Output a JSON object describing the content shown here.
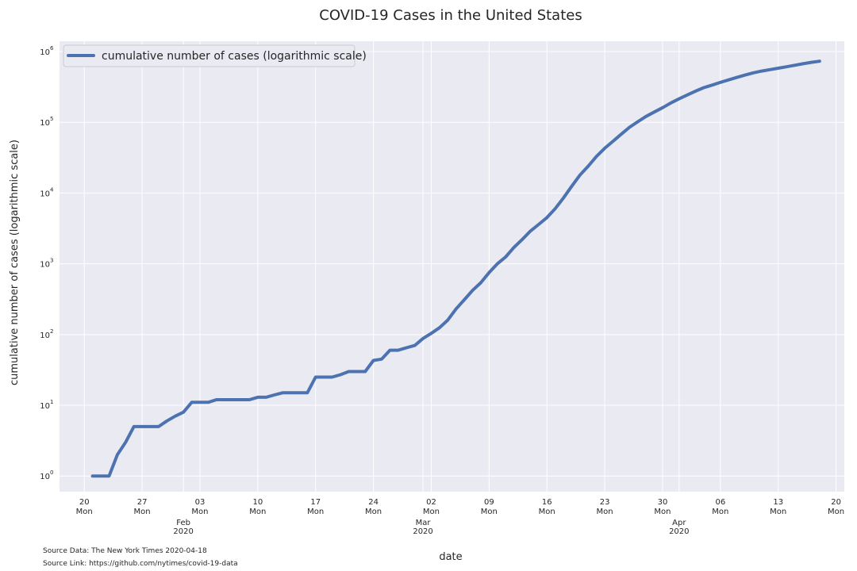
{
  "chart_data": {
    "type": "line",
    "title": "COVID-19 Cases in the United States",
    "xlabel": "date",
    "ylabel": "cumulative number of cases (logarithmic scale)",
    "yscale": "log",
    "ylim": [
      0.6,
      1400000
    ],
    "xlim": [
      "2020-01-17",
      "2020-04-21"
    ],
    "grid": true,
    "legend_position": "top-left",
    "line_color": "#4c72b0",
    "x_ticks": [
      {
        "date": "2020-01-20",
        "day": "20",
        "weekday": "Mon"
      },
      {
        "date": "2020-01-27",
        "day": "27",
        "weekday": "Mon"
      },
      {
        "date": "2020-02-03",
        "day": "03",
        "weekday": "Mon"
      },
      {
        "date": "2020-02-10",
        "day": "10",
        "weekday": "Mon"
      },
      {
        "date": "2020-02-17",
        "day": "17",
        "weekday": "Mon"
      },
      {
        "date": "2020-02-24",
        "day": "24",
        "weekday": "Mon"
      },
      {
        "date": "2020-03-02",
        "day": "02",
        "weekday": "Mon"
      },
      {
        "date": "2020-03-09",
        "day": "09",
        "weekday": "Mon"
      },
      {
        "date": "2020-03-16",
        "day": "16",
        "weekday": "Mon"
      },
      {
        "date": "2020-03-23",
        "day": "23",
        "weekday": "Mon"
      },
      {
        "date": "2020-03-30",
        "day": "30",
        "weekday": "Mon"
      },
      {
        "date": "2020-04-06",
        "day": "06",
        "weekday": "Mon"
      },
      {
        "date": "2020-04-13",
        "day": "13",
        "weekday": "Mon"
      },
      {
        "date": "2020-04-20",
        "day": "20",
        "weekday": "Mon"
      }
    ],
    "month_ticks": [
      {
        "date": "2020-02-01",
        "month": "Feb",
        "year": "2020"
      },
      {
        "date": "2020-03-01",
        "month": "Mar",
        "year": "2020"
      },
      {
        "date": "2020-04-01",
        "month": "Apr",
        "year": "2020"
      }
    ],
    "y_ticks": [
      {
        "value": 1,
        "base": "10",
        "exp": "0"
      },
      {
        "value": 10,
        "base": "10",
        "exp": "1"
      },
      {
        "value": 100,
        "base": "10",
        "exp": "2"
      },
      {
        "value": 1000,
        "base": "10",
        "exp": "3"
      },
      {
        "value": 10000,
        "base": "10",
        "exp": "4"
      },
      {
        "value": 100000,
        "base": "10",
        "exp": "5"
      },
      {
        "value": 1000000,
        "base": "10",
        "exp": "6"
      }
    ],
    "series": [
      {
        "name": "cumulative number of cases (logarithmic scale)",
        "points": [
          [
            "2020-01-21",
            1
          ],
          [
            "2020-01-22",
            1
          ],
          [
            "2020-01-23",
            1
          ],
          [
            "2020-01-24",
            2
          ],
          [
            "2020-01-25",
            3
          ],
          [
            "2020-01-26",
            5
          ],
          [
            "2020-01-27",
            5
          ],
          [
            "2020-01-28",
            5
          ],
          [
            "2020-01-29",
            5
          ],
          [
            "2020-01-30",
            6
          ],
          [
            "2020-01-31",
            7
          ],
          [
            "2020-02-01",
            8
          ],
          [
            "2020-02-02",
            11
          ],
          [
            "2020-02-03",
            11
          ],
          [
            "2020-02-04",
            11
          ],
          [
            "2020-02-05",
            12
          ],
          [
            "2020-02-06",
            12
          ],
          [
            "2020-02-07",
            12
          ],
          [
            "2020-02-08",
            12
          ],
          [
            "2020-02-09",
            12
          ],
          [
            "2020-02-10",
            13
          ],
          [
            "2020-02-11",
            13
          ],
          [
            "2020-02-12",
            14
          ],
          [
            "2020-02-13",
            15
          ],
          [
            "2020-02-14",
            15
          ],
          [
            "2020-02-15",
            15
          ],
          [
            "2020-02-16",
            15
          ],
          [
            "2020-02-17",
            25
          ],
          [
            "2020-02-18",
            25
          ],
          [
            "2020-02-19",
            25
          ],
          [
            "2020-02-20",
            27
          ],
          [
            "2020-02-21",
            30
          ],
          [
            "2020-02-22",
            30
          ],
          [
            "2020-02-23",
            30
          ],
          [
            "2020-02-24",
            43
          ],
          [
            "2020-02-25",
            45
          ],
          [
            "2020-02-26",
            60
          ],
          [
            "2020-02-27",
            60
          ],
          [
            "2020-02-28",
            65
          ],
          [
            "2020-02-29",
            70
          ],
          [
            "2020-03-01",
            88
          ],
          [
            "2020-03-02",
            104
          ],
          [
            "2020-03-03",
            125
          ],
          [
            "2020-03-04",
            160
          ],
          [
            "2020-03-05",
            230
          ],
          [
            "2020-03-06",
            310
          ],
          [
            "2020-03-07",
            420
          ],
          [
            "2020-03-08",
            540
          ],
          [
            "2020-03-09",
            750
          ],
          [
            "2020-03-10",
            1000
          ],
          [
            "2020-03-11",
            1250
          ],
          [
            "2020-03-12",
            1700
          ],
          [
            "2020-03-13",
            2200
          ],
          [
            "2020-03-14",
            2900
          ],
          [
            "2020-03-15",
            3600
          ],
          [
            "2020-03-16",
            4500
          ],
          [
            "2020-03-17",
            6000
          ],
          [
            "2020-03-18",
            8500
          ],
          [
            "2020-03-19",
            12500
          ],
          [
            "2020-03-20",
            18000
          ],
          [
            "2020-03-21",
            24000
          ],
          [
            "2020-03-22",
            33000
          ],
          [
            "2020-03-23",
            43000
          ],
          [
            "2020-03-24",
            54000
          ],
          [
            "2020-03-25",
            68000
          ],
          [
            "2020-03-26",
            85000
          ],
          [
            "2020-03-27",
            102000
          ],
          [
            "2020-03-28",
            121000
          ],
          [
            "2020-03-29",
            140000
          ],
          [
            "2020-03-30",
            161000
          ],
          [
            "2020-03-31",
            188000
          ],
          [
            "2020-04-01",
            215000
          ],
          [
            "2020-04-02",
            244000
          ],
          [
            "2020-04-03",
            276000
          ],
          [
            "2020-04-04",
            309000
          ],
          [
            "2020-04-05",
            336000
          ],
          [
            "2020-04-06",
            367000
          ],
          [
            "2020-04-07",
            398000
          ],
          [
            "2020-04-08",
            431000
          ],
          [
            "2020-04-09",
            466000
          ],
          [
            "2020-04-10",
            501000
          ],
          [
            "2020-04-11",
            530000
          ],
          [
            "2020-04-12",
            556000
          ],
          [
            "2020-04-13",
            582000
          ],
          [
            "2020-04-14",
            609000
          ],
          [
            "2020-04-15",
            640000
          ],
          [
            "2020-04-16",
            672000
          ],
          [
            "2020-04-17",
            704000
          ],
          [
            "2020-04-18",
            730000
          ]
        ]
      }
    ]
  },
  "footer": {
    "source_data": "Source Data: The New York Times 2020-04-18",
    "source_link": "Source Link: https://github.com/nytimes/covid-19-data"
  }
}
